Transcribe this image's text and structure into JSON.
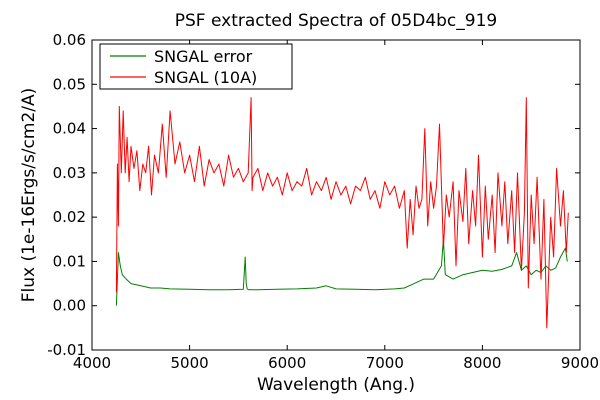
{
  "chart_data": {
    "type": "line",
    "title": "PSF extracted Spectra of 05D4bc_919",
    "title_color": "#ff0000",
    "xlabel": "Wavelength (Ang.)",
    "ylabel": "Flux (1e-16Ergs/s/cm2/A)",
    "xlim": [
      4000,
      9000
    ],
    "ylim": [
      -0.01,
      0.06
    ],
    "x_ticks": [
      4000,
      5000,
      6000,
      7000,
      8000,
      9000
    ],
    "x_tick_labels": [
      "4000",
      "5000",
      "6000",
      "7000",
      "8000",
      "9000"
    ],
    "y_ticks": [
      -0.01,
      0.0,
      0.01,
      0.02,
      0.03,
      0.04,
      0.05,
      0.06
    ],
    "y_tick_labels": [
      "-0.01",
      "0.00",
      "0.01",
      "0.02",
      "0.03",
      "0.04",
      "0.05",
      "0.06"
    ],
    "grid": false,
    "legend_position": "top-left",
    "series": [
      {
        "name": "SNGAL error",
        "color": "#008000",
        "x": [
          4250,
          4270,
          4290,
          4310,
          4350,
          4400,
          4500,
          4600,
          4700,
          4800,
          5000,
          5200,
          5400,
          5550,
          5570,
          5580,
          5590,
          5610,
          5700,
          5900,
          6100,
          6300,
          6400,
          6500,
          6700,
          6900,
          7100,
          7200,
          7300,
          7400,
          7500,
          7580,
          7600,
          7620,
          7700,
          7800,
          7900,
          8000,
          8100,
          8200,
          8300,
          8350,
          8400,
          8450,
          8500,
          8550,
          8600,
          8650,
          8700,
          8750,
          8800,
          8850,
          8870
        ],
        "y": [
          0.0,
          0.012,
          0.009,
          0.007,
          0.006,
          0.005,
          0.0045,
          0.004,
          0.004,
          0.0038,
          0.0037,
          0.0036,
          0.0036,
          0.0037,
          0.011,
          0.005,
          0.0038,
          0.0036,
          0.0036,
          0.0037,
          0.0038,
          0.004,
          0.0045,
          0.0038,
          0.0037,
          0.0036,
          0.0038,
          0.004,
          0.005,
          0.006,
          0.006,
          0.009,
          0.015,
          0.007,
          0.006,
          0.007,
          0.0075,
          0.008,
          0.0078,
          0.0082,
          0.009,
          0.012,
          0.008,
          0.009,
          0.007,
          0.008,
          0.0075,
          0.009,
          0.008,
          0.0085,
          0.011,
          0.013,
          0.01
        ]
      },
      {
        "name": "SNGAL (10A)",
        "color": "#ff0000",
        "x": [
          4250,
          4260,
          4270,
          4280,
          4300,
          4320,
          4340,
          4360,
          4380,
          4400,
          4430,
          4460,
          4490,
          4520,
          4550,
          4580,
          4610,
          4640,
          4680,
          4720,
          4760,
          4800,
          4850,
          4900,
          4950,
          5000,
          5050,
          5100,
          5150,
          5200,
          5250,
          5300,
          5350,
          5400,
          5450,
          5500,
          5550,
          5600,
          5630,
          5640,
          5650,
          5700,
          5750,
          5800,
          5850,
          5900,
          5950,
          6000,
          6050,
          6100,
          6150,
          6200,
          6250,
          6300,
          6350,
          6400,
          6450,
          6500,
          6550,
          6600,
          6650,
          6700,
          6750,
          6800,
          6850,
          6900,
          6950,
          7000,
          7050,
          7100,
          7150,
          7200,
          7230,
          7260,
          7290,
          7320,
          7350,
          7380,
          7410,
          7440,
          7470,
          7500,
          7530,
          7560,
          7600,
          7630,
          7660,
          7700,
          7730,
          7760,
          7800,
          7830,
          7860,
          7900,
          7930,
          7960,
          8000,
          8030,
          8060,
          8100,
          8130,
          8160,
          8200,
          8230,
          8260,
          8300,
          8330,
          8360,
          8400,
          8430,
          8450,
          8470,
          8500,
          8530,
          8560,
          8600,
          8630,
          8660,
          8700,
          8730,
          8760,
          8800,
          8830,
          8860,
          8880
        ],
        "y": [
          0.003,
          0.032,
          0.018,
          0.045,
          0.03,
          0.044,
          0.03,
          0.038,
          0.028,
          0.036,
          0.031,
          0.035,
          0.026,
          0.032,
          0.03,
          0.036,
          0.025,
          0.034,
          0.03,
          0.041,
          0.029,
          0.044,
          0.032,
          0.037,
          0.03,
          0.034,
          0.028,
          0.036,
          0.027,
          0.033,
          0.03,
          0.032,
          0.027,
          0.034,
          0.029,
          0.031,
          0.028,
          0.03,
          0.047,
          0.026,
          0.029,
          0.031,
          0.026,
          0.03,
          0.027,
          0.029,
          0.025,
          0.03,
          0.026,
          0.028,
          0.027,
          0.031,
          0.025,
          0.028,
          0.026,
          0.029,
          0.024,
          0.028,
          0.025,
          0.027,
          0.023,
          0.027,
          0.026,
          0.029,
          0.024,
          0.026,
          0.022,
          0.028,
          0.025,
          0.027,
          0.022,
          0.026,
          0.013,
          0.024,
          0.016,
          0.027,
          0.022,
          0.024,
          0.04,
          0.018,
          0.028,
          0.022,
          0.027,
          0.041,
          0.013,
          0.025,
          0.02,
          0.028,
          0.009,
          0.026,
          0.019,
          0.031,
          0.014,
          0.026,
          0.018,
          0.034,
          0.011,
          0.027,
          0.015,
          0.025,
          0.012,
          0.03,
          0.018,
          0.028,
          0.014,
          0.026,
          0.012,
          0.03,
          0.008,
          0.021,
          0.047,
          0.004,
          0.025,
          0.014,
          0.029,
          0.006,
          0.024,
          -0.005,
          0.02,
          0.011,
          0.031,
          0.018,
          0.026,
          0.012,
          0.021
        ]
      }
    ]
  }
}
